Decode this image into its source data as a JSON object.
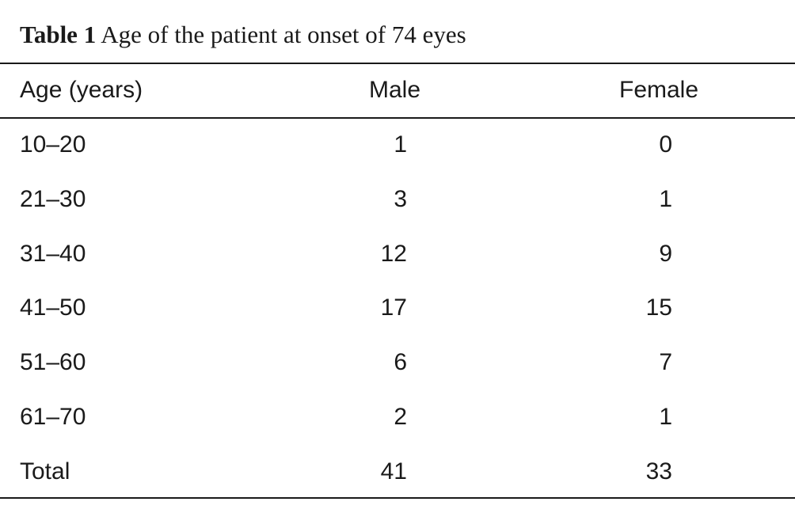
{
  "caption": {
    "label": "Table 1",
    "text": "Age of the patient at onset of 74 eyes"
  },
  "table": {
    "headers": [
      "Age (years)",
      "Male",
      "Female"
    ],
    "rows": [
      [
        "10–20",
        "1",
        "0"
      ],
      [
        "21–30",
        "3",
        "1"
      ],
      [
        "31–40",
        "12",
        "9"
      ],
      [
        "41–50",
        "17",
        "15"
      ],
      [
        "51–60",
        "6",
        "7"
      ],
      [
        "61–70",
        "2",
        "1"
      ],
      [
        "Total",
        "41",
        "33"
      ]
    ]
  }
}
